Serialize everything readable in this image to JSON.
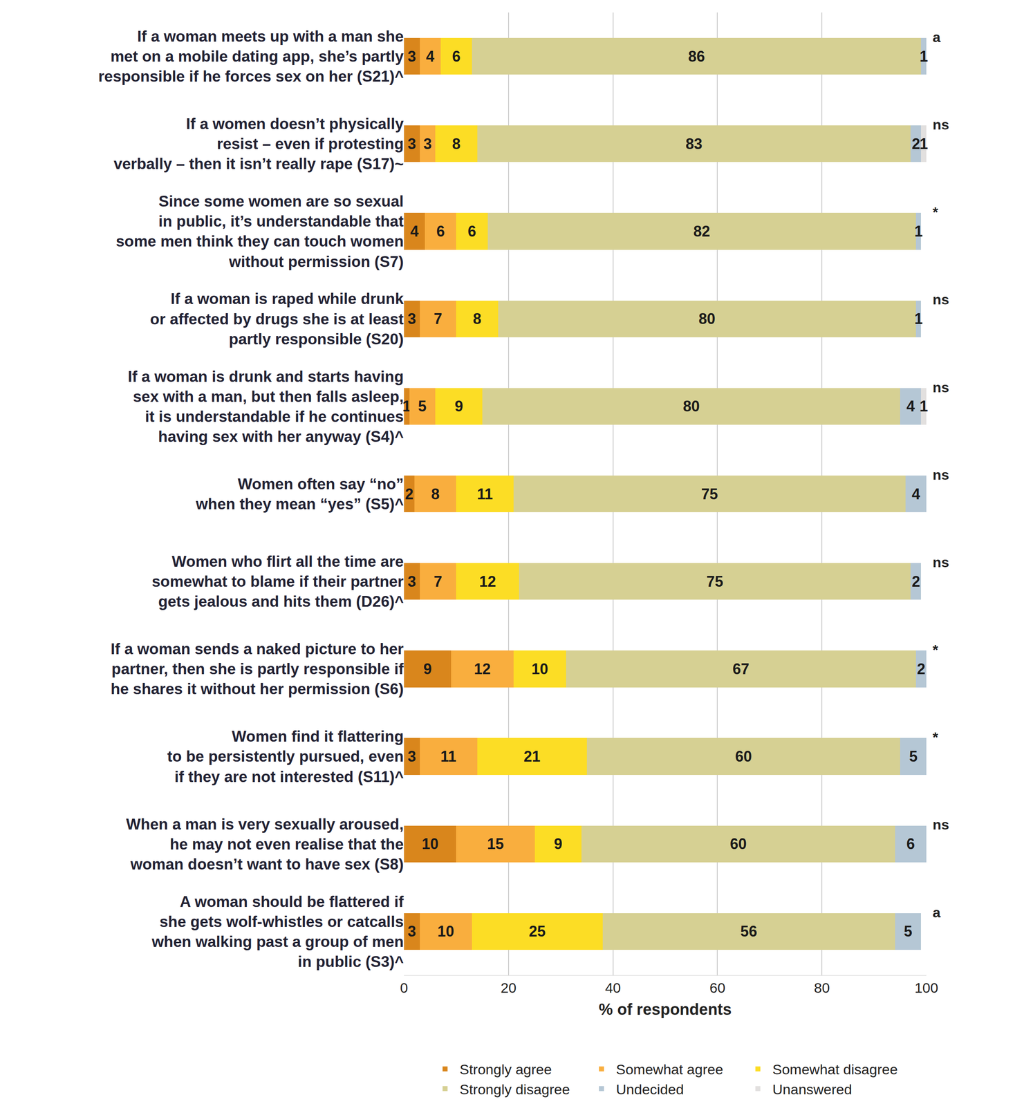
{
  "chart_data": {
    "type": "bar",
    "orientation": "horizontal",
    "stacked": true,
    "data_labels": true,
    "grid": true,
    "legend": "bottom",
    "x_label": "% of respondents",
    "xlim": [
      0,
      100
    ],
    "xticks": [
      0,
      20,
      40,
      60,
      80,
      100
    ],
    "categories": [
      "If a woman meets up with a man she\nmet on a mobile dating app, she’s partly\nresponsible if he forces sex on her (S21)^",
      "If a women doesn’t physically\nresist – even if protesting\nverbally – then it isn’t really rape (S17)~",
      "Since some women are so sexual\nin public, it’s understandable that\nsome men think they can touch women\nwithout permission (S7)",
      "If a woman is raped while drunk\nor affected by drugs she is at least\npartly responsible (S20)",
      "If a woman is drunk and starts having\nsex with a man, but then falls asleep,\nit is understandable if he continues\nhaving sex with her anyway (S4)^",
      "Women often say “no”\nwhen they mean “yes” (S5)^",
      "Women who flirt all the time are\nsomewhat to blame if their partner\ngets jealous and hits them (D26)^",
      "If a woman sends a naked picture to her\npartner, then she is partly responsible if\nhe shares it without her permission (S6)",
      "Women find it flattering\nto be persistently pursued, even\nif they are not interested (S11)^",
      "When a man is very sexually aroused,\nhe may not even realise that the\nwoman doesn’t want to have sex (S8)",
      "A woman should be flattered if\nshe gets wolf-whistles or catcalls\nwhen walking past a group of men\nin public (S3)^"
    ],
    "annotations": [
      "a",
      "ns",
      "*",
      "ns",
      "ns",
      "ns",
      "ns",
      "*",
      "*",
      "ns",
      "a"
    ],
    "series": [
      {
        "name": "Strongly agree",
        "color": "#D9861C",
        "values": [
          3,
          3,
          4,
          3,
          1,
          2,
          3,
          9,
          3,
          10,
          3
        ]
      },
      {
        "name": "Somewhat agree",
        "color": "#F9AE3E",
        "values": [
          4,
          3,
          6,
          7,
          5,
          8,
          7,
          12,
          11,
          15,
          10
        ]
      },
      {
        "name": "Somewhat disagree",
        "color": "#FCDD25",
        "values": [
          6,
          8,
          6,
          8,
          9,
          11,
          12,
          10,
          21,
          9,
          25
        ]
      },
      {
        "name": "Strongly disagree",
        "color": "#D6D093",
        "values": [
          86,
          83,
          82,
          80,
          80,
          75,
          75,
          67,
          60,
          60,
          56
        ]
      },
      {
        "name": "Undecided",
        "color": "#B5C7D5",
        "values": [
          1,
          2,
          1,
          1,
          4,
          4,
          2,
          2,
          5,
          6,
          5
        ]
      },
      {
        "name": "Unanswered",
        "color": "#E2E0DF",
        "values": [
          null,
          1,
          null,
          null,
          1,
          null,
          null,
          null,
          null,
          null,
          null
        ]
      }
    ]
  }
}
